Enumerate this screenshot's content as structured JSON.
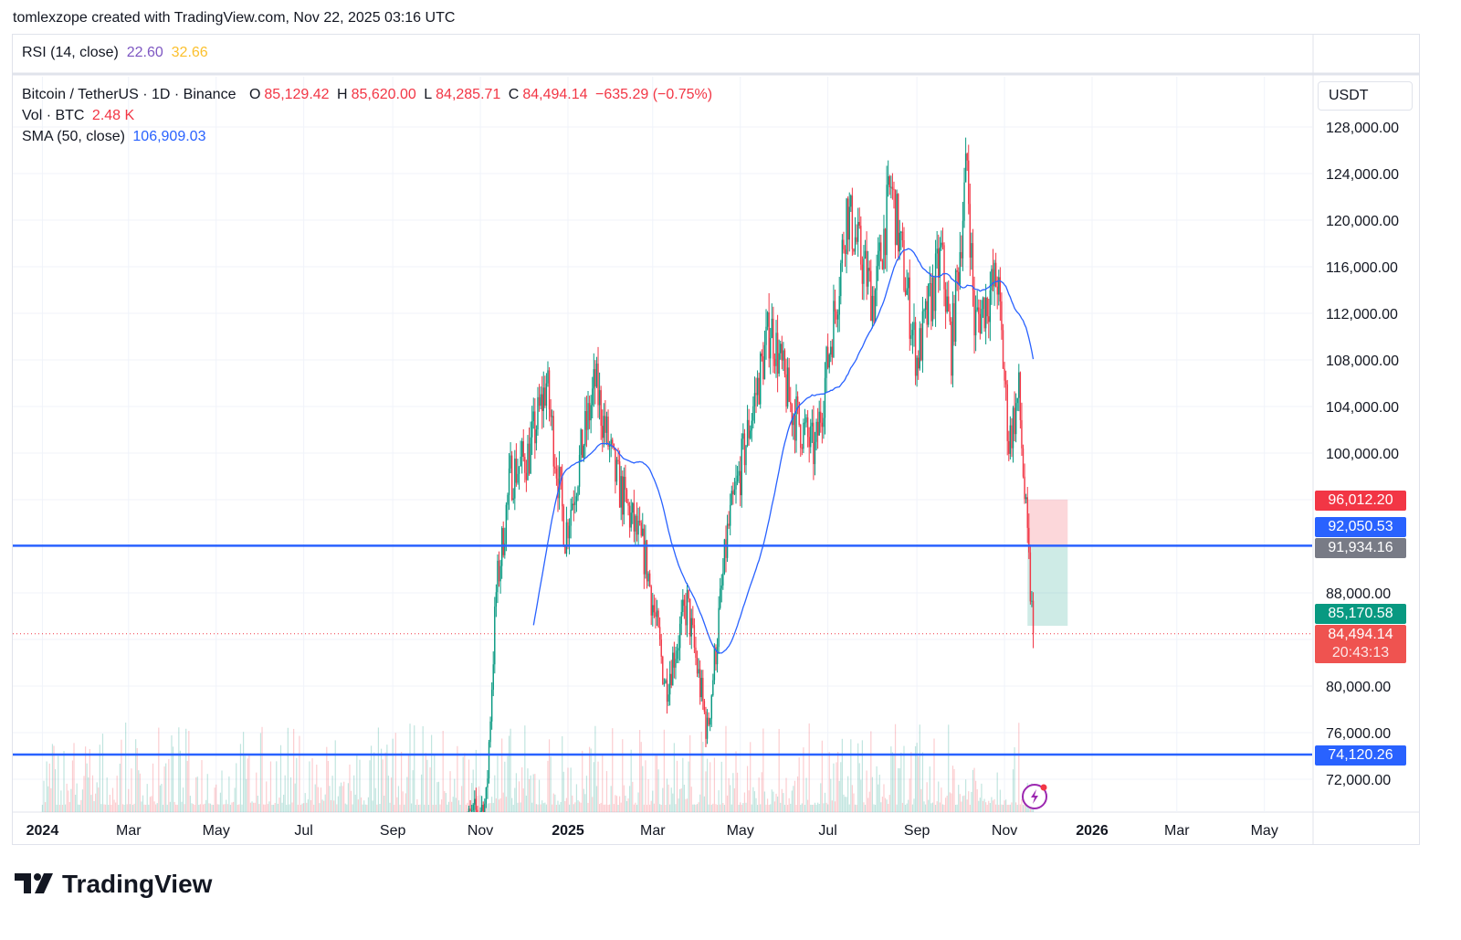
{
  "credit": "tomlexzope created with TradingView.com, Nov 22, 2025 03:16 UTC",
  "rsi": {
    "label": "RSI (14, close)",
    "value": "22.60",
    "ma": "32.66"
  },
  "legend": {
    "symbol": "Bitcoin / TetherUS · 1D · Binance",
    "o_label": "O",
    "o": "85,129.42",
    "h_label": "H",
    "h": "85,620.00",
    "l_label": "L",
    "l": "84,285.71",
    "c_label": "C",
    "c": "84,494.14",
    "change": "−635.29 (−0.75%)",
    "vol_label": "Vol · BTC",
    "vol": "2.48 K",
    "sma_label": "SMA (50, close)",
    "sma": "106,909.03"
  },
  "axis": {
    "currency": "USDT"
  },
  "tags": {
    "stop": "96,012.20",
    "line1": "92,050.53",
    "entry": "91,934.16",
    "target": "85,170.58",
    "last": "84,494.14",
    "countdown": "20:43:13",
    "line2": "74,120.26"
  },
  "brand": "TradingView",
  "colors": {
    "up": "#089981",
    "down": "#f23645",
    "sma": "#2962ff",
    "hline": "#2962ff"
  },
  "chart_data": {
    "type": "candlestick",
    "title": "Bitcoin / TetherUS · 1D · Binance",
    "ylim": [
      70000,
      130000
    ],
    "y_ticks": [
      72000,
      76000,
      80000,
      84000,
      88000,
      100000,
      104000,
      108000,
      112000,
      116000,
      120000,
      124000,
      128000
    ],
    "y_tick_labels": [
      "72,000.00",
      "76,000.00",
      "80,000.00",
      "",
      "88,000.00",
      "100,000.00",
      "104,000.00",
      "108,000.00",
      "112,000.00",
      "116,000.00",
      "120,000.00",
      "124,000.00",
      "128,000.00"
    ],
    "x_ticks": [
      {
        "d": "2024-01-01",
        "label": "2024"
      },
      {
        "d": "2024-03-01",
        "label": "Mar"
      },
      {
        "d": "2024-05-01",
        "label": "May"
      },
      {
        "d": "2024-07-01",
        "label": "Jul"
      },
      {
        "d": "2024-09-01",
        "label": "Sep"
      },
      {
        "d": "2024-11-01",
        "label": "Nov"
      },
      {
        "d": "2025-01-01",
        "label": "2025"
      },
      {
        "d": "2025-03-01",
        "label": "Mar"
      },
      {
        "d": "2025-05-01",
        "label": "May"
      },
      {
        "d": "2025-07-01",
        "label": "Jul"
      },
      {
        "d": "2025-09-01",
        "label": "Sep"
      },
      {
        "d": "2025-11-01",
        "label": "Nov"
      },
      {
        "d": "2026-01-01",
        "label": "2026"
      },
      {
        "d": "2026-03-01",
        "label": "Mar"
      },
      {
        "d": "2026-05-01",
        "label": "May"
      }
    ],
    "close_path_approx": [
      [
        "2024-10-20",
        68000
      ],
      [
        "2024-11-05",
        70000
      ],
      [
        "2024-11-12",
        88000
      ],
      [
        "2024-11-22",
        98000
      ],
      [
        "2024-12-05",
        100000
      ],
      [
        "2024-12-17",
        106000
      ],
      [
        "2024-12-30",
        93000
      ],
      [
        "2025-01-20",
        106000
      ],
      [
        "2025-02-03",
        98000
      ],
      [
        "2025-02-24",
        91000
      ],
      [
        "2025-03-10",
        80000
      ],
      [
        "2025-03-25",
        87000
      ],
      [
        "2025-04-08",
        76000
      ],
      [
        "2025-04-22",
        93000
      ],
      [
        "2025-05-10",
        104000
      ],
      [
        "2025-05-22",
        111000
      ],
      [
        "2025-06-05",
        104000
      ],
      [
        "2025-06-22",
        100000
      ],
      [
        "2025-07-10",
        116000
      ],
      [
        "2025-07-14",
        121000
      ],
      [
        "2025-08-02",
        113000
      ],
      [
        "2025-08-14",
        123000
      ],
      [
        "2025-09-01",
        108000
      ],
      [
        "2025-09-18",
        117000
      ],
      [
        "2025-09-25",
        109000
      ],
      [
        "2025-10-06",
        125000
      ],
      [
        "2025-10-11",
        111000
      ],
      [
        "2025-10-27",
        115000
      ],
      [
        "2025-11-04",
        101000
      ],
      [
        "2025-11-11",
        105000
      ],
      [
        "2025-11-17",
        92000
      ],
      [
        "2025-11-21",
        84494.14
      ]
    ],
    "sma_period": 50,
    "horizontal_lines": [
      92050.53,
      74120.26
    ],
    "position": {
      "stop": 96012.2,
      "entry": 91934.16,
      "target": 85170.58,
      "start": "2025-11-17",
      "end": "2025-12-15"
    },
    "last_price": 84494.14
  }
}
